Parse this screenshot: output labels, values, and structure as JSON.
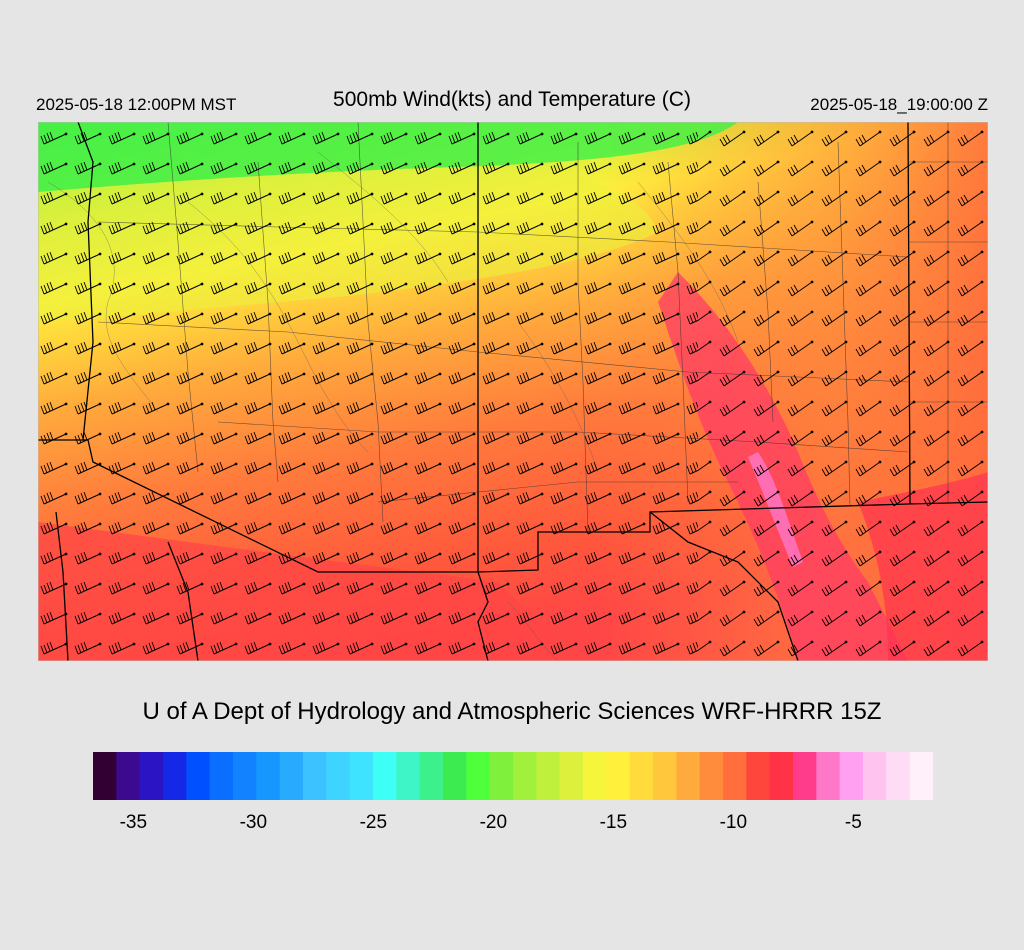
{
  "header": {
    "valid_time_local": "2025-05-18 12:00PM MST",
    "title": "500mb Wind(kts) and Temperature (C)",
    "valid_time_utc": "2025-05-18_19:00:00 Z"
  },
  "credit": "U of A Dept of Hydrology and Atmospheric Sciences WRF-HRRR 15Z",
  "colorbar": {
    "colors": [
      "#330033",
      "#3b0a8f",
      "#2a14c4",
      "#1428e6",
      "#0050ff",
      "#0a6eff",
      "#1282ff",
      "#1696ff",
      "#28aaff",
      "#3cc3ff",
      "#3ed4ff",
      "#3ee3ff",
      "#3efff5",
      "#3ef5c8",
      "#3cf08c",
      "#3ceb50",
      "#50ff3c",
      "#7ff03c",
      "#a0f03c",
      "#bef03c",
      "#dcf03c",
      "#f5f53c",
      "#fff03c",
      "#ffdc3c",
      "#ffc83c",
      "#ffaa3c",
      "#ff8c3c",
      "#ff6e3c",
      "#ff463c",
      "#ff3246",
      "#ff3c8c",
      "#ff78c8",
      "#ffa0f0",
      "#ffc3f0",
      "#ffdcf5",
      "#fff0fa"
    ],
    "tick_labels": [
      {
        "value": -35,
        "text": "-35"
      },
      {
        "value": -30,
        "text": "-30"
      },
      {
        "value": -25,
        "text": "-25"
      },
      {
        "value": -20,
        "text": "-20"
      },
      {
        "value": -15,
        "text": "-15"
      },
      {
        "value": -10,
        "text": "-10"
      },
      {
        "value": -5,
        "text": "-5"
      }
    ],
    "min": -36,
    "max": -1
  },
  "map": {
    "field": "500mb temperature (C) shaded, wind barbs (kts)",
    "color_regions": {
      "north": "#46f046",
      "north_central": "#e6f03c",
      "central": "#ffaa3c",
      "south": "#ff6e3c",
      "southeast": "#ff3c50",
      "warm_band": "#ff3c8c",
      "warm_core": "#ff78c8"
    }
  }
}
